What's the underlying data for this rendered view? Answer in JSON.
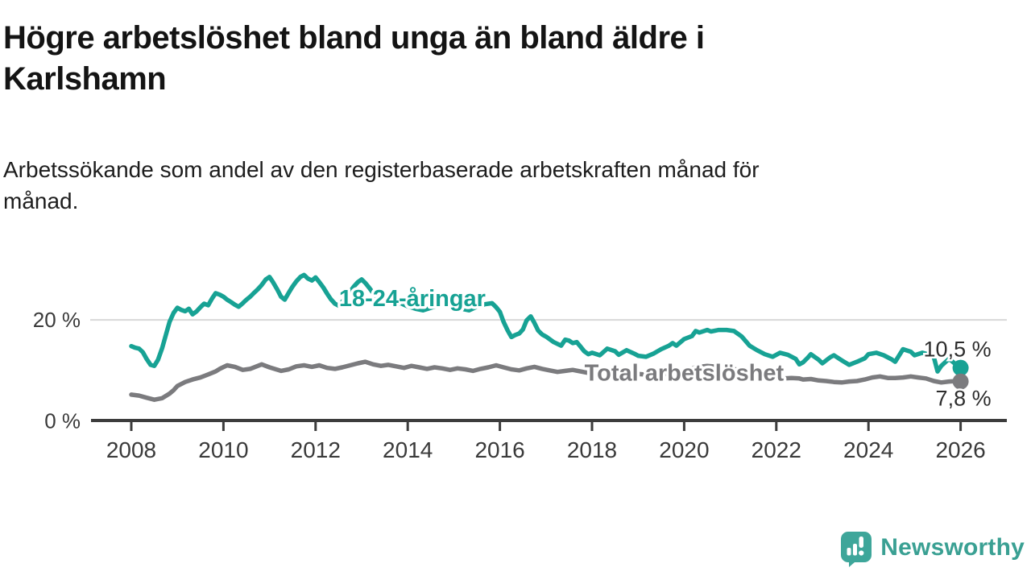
{
  "title": {
    "text": "Högre arbetslöshet bland unga än bland äldre i Karlshamn",
    "lines": [
      "Högre arbetslöshet bland unga än bland äldre i",
      "Karlshamn"
    ]
  },
  "subtitle": {
    "text": "Arbetssökande som andel av den registerbaserade arbetskraften månad för månad.",
    "lines": [
      "Arbetssökande som andel av den registerbaserade arbetskraften månad för",
      "månad."
    ]
  },
  "branding": {
    "logo_text": "Newsworthy",
    "logo_color": "#3EA69A",
    "logo_icon": "speech-bubble-bar-chart-icon"
  },
  "colors": {
    "youth_line": "#17A294",
    "total_line": "#7b7b7e",
    "axis": "#3c3c3c",
    "grid": "#d8d8d8",
    "tick_text": "#3a3a3a",
    "value_label_text": "#2d2d2d"
  },
  "chart_data": {
    "type": "line",
    "title": "Högre arbetslöshet bland unga än bland äldre i Karlshamn",
    "subtitle": "Arbetssökande som andel av den registerbaserade arbetskraften månad för månad.",
    "xlabel": "",
    "ylabel": "",
    "xlim": [
      2007.1,
      2027.0
    ],
    "ylim": [
      0,
      30
    ],
    "grid": "horizontal-20-only",
    "legend_position": "inline-labels",
    "yticks": [
      {
        "value": 0,
        "label": "0 %"
      },
      {
        "value": 20,
        "label": "20 %"
      }
    ],
    "xticks": [
      {
        "value": 2008,
        "label": "2008"
      },
      {
        "value": 2010,
        "label": "2010"
      },
      {
        "value": 2012,
        "label": "2012"
      },
      {
        "value": 2014,
        "label": "2014"
      },
      {
        "value": 2016,
        "label": "2016"
      },
      {
        "value": 2018,
        "label": "2018"
      },
      {
        "value": 2020,
        "label": "2020"
      },
      {
        "value": 2022,
        "label": "2022"
      },
      {
        "value": 2024,
        "label": "2024"
      },
      {
        "value": 2026,
        "label": "2026"
      }
    ],
    "series": [
      {
        "name": "18-24-åringar",
        "color": "#17A294",
        "end_label": "10,5 %",
        "end_value": 10.5,
        "label_pos": {
          "x": 2014.1,
          "y": 24.3
        },
        "points": [
          [
            2008,
            14.8
          ],
          [
            2008.08,
            14.5
          ],
          [
            2008.17,
            14.3
          ],
          [
            2008.25,
            13.6
          ],
          [
            2008.33,
            12.3
          ],
          [
            2008.42,
            11.1
          ],
          [
            2008.5,
            10.9
          ],
          [
            2008.58,
            12.1
          ],
          [
            2008.67,
            14.4
          ],
          [
            2008.75,
            17
          ],
          [
            2008.83,
            19.6
          ],
          [
            2008.92,
            21.4
          ],
          [
            2009,
            22.4
          ],
          [
            2009.08,
            22
          ],
          [
            2009.17,
            21.7
          ],
          [
            2009.25,
            22.2
          ],
          [
            2009.33,
            21.1
          ],
          [
            2009.42,
            21.7
          ],
          [
            2009.5,
            22.5
          ],
          [
            2009.58,
            23.2
          ],
          [
            2009.67,
            22.9
          ],
          [
            2009.75,
            24.2
          ],
          [
            2009.83,
            25.3
          ],
          [
            2009.92,
            25
          ],
          [
            2010,
            24.6
          ],
          [
            2010.08,
            24
          ],
          [
            2010.17,
            23.5
          ],
          [
            2010.25,
            23
          ],
          [
            2010.33,
            22.6
          ],
          [
            2010.42,
            23.3
          ],
          [
            2010.5,
            24
          ],
          [
            2010.58,
            24.6
          ],
          [
            2010.67,
            25.4
          ],
          [
            2010.75,
            26.1
          ],
          [
            2010.83,
            26.9
          ],
          [
            2010.92,
            28
          ],
          [
            2011,
            28.5
          ],
          [
            2011.08,
            27.4
          ],
          [
            2011.17,
            26
          ],
          [
            2011.25,
            24.6
          ],
          [
            2011.33,
            24
          ],
          [
            2011.42,
            25.4
          ],
          [
            2011.5,
            26.6
          ],
          [
            2011.58,
            27.6
          ],
          [
            2011.67,
            28.5
          ],
          [
            2011.75,
            28.9
          ],
          [
            2011.83,
            28.2
          ],
          [
            2011.92,
            27.8
          ],
          [
            2012,
            28.4
          ],
          [
            2012.08,
            27.5
          ],
          [
            2012.17,
            26.4
          ],
          [
            2012.25,
            25.2
          ],
          [
            2012.33,
            24.1
          ],
          [
            2012.42,
            23.2
          ],
          [
            2012.5,
            22.8
          ],
          [
            2012.58,
            23.6
          ],
          [
            2012.67,
            24.6
          ],
          [
            2012.75,
            25.6
          ],
          [
            2012.83,
            26.6
          ],
          [
            2012.92,
            27.5
          ],
          [
            2013,
            28
          ],
          [
            2013.08,
            27.3
          ],
          [
            2013.17,
            26.3
          ],
          [
            2013.25,
            25.3
          ],
          [
            2013.33,
            24.5
          ],
          [
            2013.42,
            24
          ],
          [
            2013.5,
            23.4
          ],
          [
            2013.58,
            23.9
          ],
          [
            2013.67,
            23.2
          ],
          [
            2013.75,
            22.9
          ],
          [
            2013.83,
            23.4
          ],
          [
            2013.92,
            23
          ],
          [
            2014,
            22.7
          ],
          [
            2014.17,
            22.2
          ],
          [
            2014.33,
            21.9
          ],
          [
            2014.5,
            22.4
          ],
          [
            2014.67,
            22.9
          ],
          [
            2014.83,
            23.2
          ],
          [
            2015,
            22.8
          ],
          [
            2015.17,
            22.2
          ],
          [
            2015.33,
            21.9
          ],
          [
            2015.5,
            22.6
          ],
          [
            2015.67,
            23.1
          ],
          [
            2015.83,
            23.3
          ],
          [
            2015.92,
            22.5
          ],
          [
            2016,
            21.6
          ],
          [
            2016.08,
            19.6
          ],
          [
            2016.17,
            17.9
          ],
          [
            2016.25,
            16.6
          ],
          [
            2016.33,
            17
          ],
          [
            2016.42,
            17.3
          ],
          [
            2016.5,
            18.1
          ],
          [
            2016.58,
            19.9
          ],
          [
            2016.67,
            20.7
          ],
          [
            2016.75,
            19.4
          ],
          [
            2016.83,
            17.9
          ],
          [
            2016.92,
            17.1
          ],
          [
            2017,
            16.7
          ],
          [
            2017.17,
            15.6
          ],
          [
            2017.33,
            14.9
          ],
          [
            2017.42,
            16.1
          ],
          [
            2017.5,
            15.9
          ],
          [
            2017.58,
            15.4
          ],
          [
            2017.67,
            15.6
          ],
          [
            2017.75,
            14.7
          ],
          [
            2017.83,
            13.8
          ],
          [
            2017.92,
            13.2
          ],
          [
            2018,
            13.5
          ],
          [
            2018.17,
            13
          ],
          [
            2018.33,
            14.3
          ],
          [
            2018.5,
            13.8
          ],
          [
            2018.58,
            13.1
          ],
          [
            2018.75,
            14
          ],
          [
            2018.92,
            13.3
          ],
          [
            2019,
            12.9
          ],
          [
            2019.17,
            12.7
          ],
          [
            2019.33,
            13.3
          ],
          [
            2019.5,
            14.2
          ],
          [
            2019.67,
            14.9
          ],
          [
            2019.75,
            15.4
          ],
          [
            2019.83,
            14.9
          ],
          [
            2020,
            16.2
          ],
          [
            2020.17,
            16.8
          ],
          [
            2020.25,
            17.8
          ],
          [
            2020.33,
            17.5
          ],
          [
            2020.5,
            18
          ],
          [
            2020.58,
            17.7
          ],
          [
            2020.75,
            18
          ],
          [
            2020.92,
            18
          ],
          [
            2021.08,
            17.8
          ],
          [
            2021.25,
            16.7
          ],
          [
            2021.42,
            14.9
          ],
          [
            2021.58,
            14
          ],
          [
            2021.75,
            13.2
          ],
          [
            2021.92,
            12.7
          ],
          [
            2022.08,
            13.5
          ],
          [
            2022.25,
            13.1
          ],
          [
            2022.42,
            12.3
          ],
          [
            2022.5,
            11.2
          ],
          [
            2022.58,
            11.6
          ],
          [
            2022.67,
            12.4
          ],
          [
            2022.75,
            13.2
          ],
          [
            2022.92,
            12.1
          ],
          [
            2023,
            11.4
          ],
          [
            2023.17,
            12.6
          ],
          [
            2023.25,
            13
          ],
          [
            2023.42,
            12
          ],
          [
            2023.58,
            11.1
          ],
          [
            2023.75,
            11.7
          ],
          [
            2023.92,
            12.4
          ],
          [
            2024,
            13.2
          ],
          [
            2024.17,
            13.5
          ],
          [
            2024.33,
            13
          ],
          [
            2024.5,
            12.2
          ],
          [
            2024.58,
            11.7
          ],
          [
            2024.75,
            14.2
          ],
          [
            2024.92,
            13.7
          ],
          [
            2025,
            13
          ],
          [
            2025.17,
            13.5
          ],
          [
            2025.33,
            13.1
          ],
          [
            2025.42,
            12.6
          ],
          [
            2025.5,
            9.8
          ],
          [
            2025.58,
            10.9
          ],
          [
            2025.75,
            12.3
          ],
          [
            2025.92,
            11
          ],
          [
            2026,
            10.5
          ]
        ]
      },
      {
        "name": "Total arbetslöshet",
        "color": "#7b7b7e",
        "end_label": "7,8 %",
        "end_value": 7.8,
        "label_pos": {
          "x": 2020.0,
          "y": 9.6
        },
        "points": [
          [
            2008,
            5.2
          ],
          [
            2008.17,
            5
          ],
          [
            2008.33,
            4.6
          ],
          [
            2008.5,
            4.2
          ],
          [
            2008.67,
            4.5
          ],
          [
            2008.83,
            5.4
          ],
          [
            2008.92,
            6.1
          ],
          [
            2009,
            6.9
          ],
          [
            2009.17,
            7.7
          ],
          [
            2009.33,
            8.2
          ],
          [
            2009.5,
            8.6
          ],
          [
            2009.67,
            9.2
          ],
          [
            2009.83,
            9.8
          ],
          [
            2009.92,
            10.3
          ],
          [
            2010.08,
            11
          ],
          [
            2010.25,
            10.7
          ],
          [
            2010.42,
            10.1
          ],
          [
            2010.58,
            10.3
          ],
          [
            2010.83,
            11.2
          ],
          [
            2011,
            10.6
          ],
          [
            2011.25,
            9.9
          ],
          [
            2011.42,
            10.2
          ],
          [
            2011.58,
            10.8
          ],
          [
            2011.75,
            11
          ],
          [
            2011.92,
            10.7
          ],
          [
            2012.08,
            11
          ],
          [
            2012.25,
            10.5
          ],
          [
            2012.42,
            10.3
          ],
          [
            2012.58,
            10.6
          ],
          [
            2012.75,
            11
          ],
          [
            2012.92,
            11.4
          ],
          [
            2013.08,
            11.7
          ],
          [
            2013.25,
            11.2
          ],
          [
            2013.42,
            10.9
          ],
          [
            2013.58,
            11.1
          ],
          [
            2013.75,
            10.8
          ],
          [
            2013.92,
            10.5
          ],
          [
            2014.08,
            10.9
          ],
          [
            2014.25,
            10.6
          ],
          [
            2014.42,
            10.3
          ],
          [
            2014.58,
            10.6
          ],
          [
            2014.75,
            10.4
          ],
          [
            2014.92,
            10.1
          ],
          [
            2015.08,
            10.4
          ],
          [
            2015.25,
            10.2
          ],
          [
            2015.42,
            9.9
          ],
          [
            2015.58,
            10.3
          ],
          [
            2015.75,
            10.6
          ],
          [
            2015.92,
            11
          ],
          [
            2016.08,
            10.6
          ],
          [
            2016.25,
            10.2
          ],
          [
            2016.42,
            10
          ],
          [
            2016.58,
            10.4
          ],
          [
            2016.75,
            10.7
          ],
          [
            2016.92,
            10.3
          ],
          [
            2017.08,
            10
          ],
          [
            2017.25,
            9.7
          ],
          [
            2017.42,
            9.9
          ],
          [
            2017.58,
            10.1
          ],
          [
            2017.75,
            9.8
          ],
          [
            2017.92,
            9.5
          ],
          [
            2018,
            10.3
          ],
          [
            2018.17,
            9.8
          ],
          [
            2018.33,
            10
          ],
          [
            2018.5,
            9.7
          ],
          [
            2018.75,
            9.5
          ],
          [
            2019,
            9.3
          ],
          [
            2019.25,
            9.1
          ],
          [
            2019.5,
            9.2
          ],
          [
            2019.75,
            9.4
          ],
          [
            2020,
            9.8
          ],
          [
            2020.25,
            10.6
          ],
          [
            2020.5,
            10.9
          ],
          [
            2020.75,
            10.7
          ],
          [
            2021,
            10.4
          ],
          [
            2021.25,
            10
          ],
          [
            2021.5,
            9.5
          ],
          [
            2021.75,
            9
          ],
          [
            2022,
            8.6
          ],
          [
            2022.17,
            8.4
          ],
          [
            2022.33,
            8.5
          ],
          [
            2022.5,
            8.4
          ],
          [
            2022.58,
            8.2
          ],
          [
            2022.75,
            8.3
          ],
          [
            2022.92,
            8
          ],
          [
            2023.08,
            7.9
          ],
          [
            2023.25,
            7.7
          ],
          [
            2023.42,
            7.6
          ],
          [
            2023.58,
            7.8
          ],
          [
            2023.75,
            7.9
          ],
          [
            2023.92,
            8.2
          ],
          [
            2024.08,
            8.6
          ],
          [
            2024.25,
            8.8
          ],
          [
            2024.42,
            8.5
          ],
          [
            2024.58,
            8.5
          ],
          [
            2024.75,
            8.6
          ],
          [
            2024.92,
            8.8
          ],
          [
            2025.08,
            8.6
          ],
          [
            2025.25,
            8.4
          ],
          [
            2025.42,
            7.9
          ],
          [
            2025.58,
            7.6
          ],
          [
            2025.75,
            7.8
          ],
          [
            2025.92,
            7.9
          ],
          [
            2026,
            7.8
          ]
        ]
      }
    ]
  }
}
